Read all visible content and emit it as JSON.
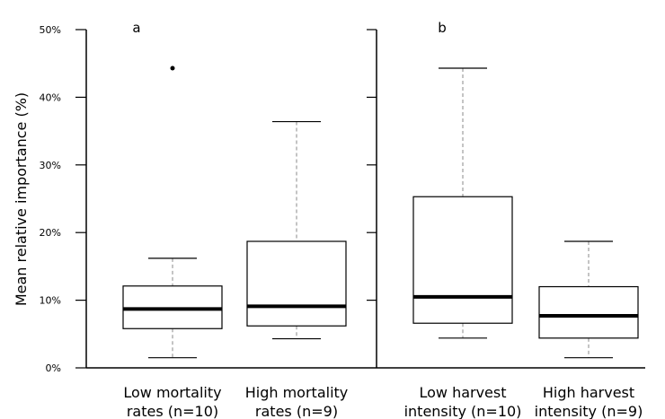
{
  "chart_data": {
    "type": "boxplot",
    "ylabel": "Mean relative importance (%)",
    "ylim": [
      0,
      50
    ],
    "yticks": [
      "0%",
      "10%",
      "20%",
      "30%",
      "40%",
      "50%"
    ],
    "panels": [
      {
        "label": "a",
        "boxes": [
          {
            "category": [
              "Low mortality",
              "rates (n=10)"
            ],
            "min": 1.5,
            "q1": 5.8,
            "median": 8.7,
            "q3": 12.1,
            "max": 16.2,
            "outliers": [
              44.3
            ]
          },
          {
            "category": [
              "High mortality",
              "rates (n=9)"
            ],
            "min": 4.3,
            "q1": 6.2,
            "median": 9.1,
            "q3": 18.7,
            "max": 36.4,
            "outliers": []
          }
        ]
      },
      {
        "label": "b",
        "boxes": [
          {
            "category": [
              "Low harvest",
              "intensity (n=10)"
            ],
            "min": 4.4,
            "q1": 6.6,
            "median": 10.5,
            "q3": 25.3,
            "max": 44.3,
            "outliers": []
          },
          {
            "category": [
              "High harvest",
              "intensity (n=9)"
            ],
            "min": 1.5,
            "q1": 4.4,
            "median": 7.7,
            "q3": 12.0,
            "max": 18.7,
            "outliers": []
          }
        ]
      }
    ]
  }
}
